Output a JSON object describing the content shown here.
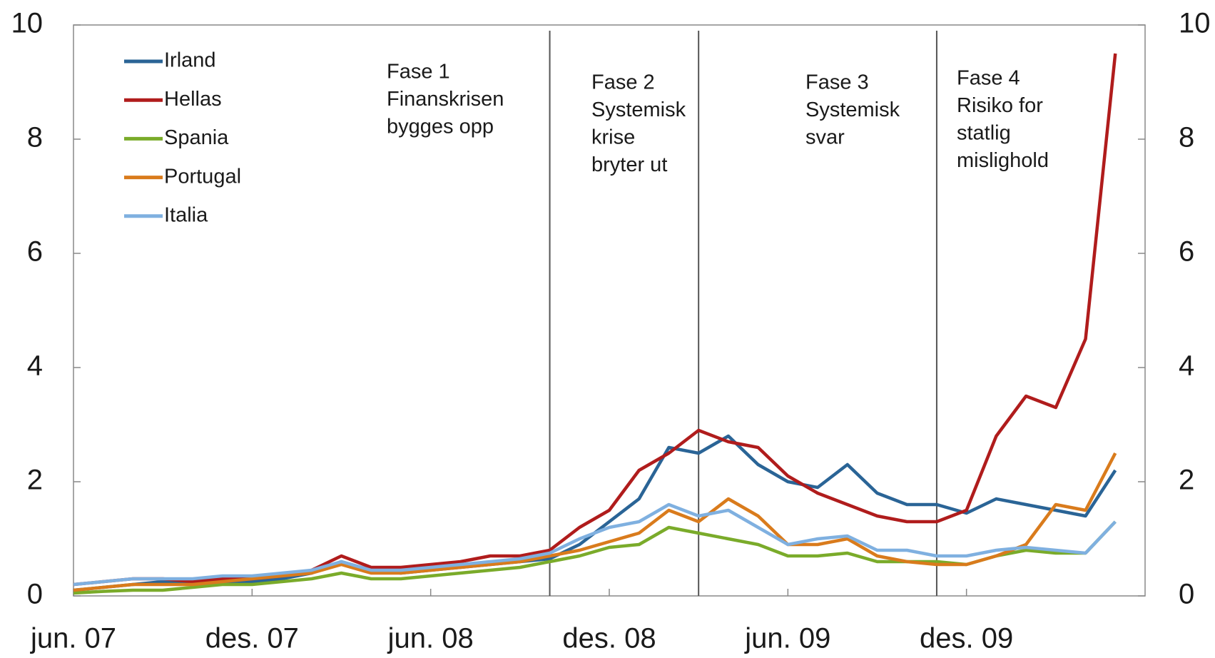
{
  "chart_data": {
    "type": "line",
    "x": [
      "2007-06",
      "2007-07",
      "2007-08",
      "2007-09",
      "2007-10",
      "2007-11",
      "2007-12",
      "2008-01",
      "2008-02",
      "2008-03",
      "2008-04",
      "2008-05",
      "2008-06",
      "2008-07",
      "2008-08",
      "2008-09",
      "2008-10",
      "2008-11",
      "2008-12",
      "2009-01",
      "2009-02",
      "2009-03",
      "2009-04",
      "2009-05",
      "2009-06",
      "2009-07",
      "2009-08",
      "2009-09",
      "2009-10",
      "2009-11",
      "2009-12",
      "2010-01",
      "2010-02",
      "2010-03",
      "2010-04",
      "2010-05"
    ],
    "series": [
      {
        "name": "Irland",
        "color": "#2a6496",
        "values": [
          0.1,
          0.15,
          0.2,
          0.25,
          0.2,
          0.25,
          0.25,
          0.3,
          0.4,
          0.6,
          0.45,
          0.4,
          0.45,
          0.5,
          0.55,
          0.6,
          0.65,
          0.9,
          1.3,
          1.7,
          2.6,
          2.5,
          2.8,
          2.3,
          2.0,
          1.9,
          2.3,
          1.8,
          1.6,
          1.6,
          1.45,
          1.7,
          1.6,
          1.5,
          1.4,
          2.2
        ]
      },
      {
        "name": "Hellas",
        "color": "#b01c1c",
        "values": [
          0.2,
          0.25,
          0.3,
          0.3,
          0.25,
          0.3,
          0.3,
          0.35,
          0.45,
          0.7,
          0.5,
          0.5,
          0.55,
          0.6,
          0.7,
          0.7,
          0.8,
          1.2,
          1.5,
          2.2,
          2.5,
          2.9,
          2.7,
          2.6,
          2.1,
          1.8,
          1.6,
          1.4,
          1.3,
          1.3,
          1.5,
          2.8,
          3.5,
          3.3,
          4.5,
          9.5
        ]
      },
      {
        "name": "Spania",
        "color": "#7aab2a",
        "values": [
          0.05,
          0.08,
          0.1,
          0.1,
          0.15,
          0.2,
          0.2,
          0.25,
          0.3,
          0.4,
          0.3,
          0.3,
          0.35,
          0.4,
          0.45,
          0.5,
          0.6,
          0.7,
          0.85,
          0.9,
          1.2,
          1.1,
          1.0,
          0.9,
          0.7,
          0.7,
          0.75,
          0.6,
          0.6,
          0.6,
          0.55,
          0.7,
          0.8,
          0.75,
          0.75,
          1.3
        ]
      },
      {
        "name": "Portugal",
        "color": "#d97b1c",
        "values": [
          0.1,
          0.15,
          0.2,
          0.2,
          0.2,
          0.25,
          0.3,
          0.35,
          0.4,
          0.55,
          0.4,
          0.4,
          0.45,
          0.5,
          0.55,
          0.6,
          0.7,
          0.8,
          0.95,
          1.1,
          1.5,
          1.3,
          1.7,
          1.4,
          0.9,
          0.9,
          1.0,
          0.7,
          0.6,
          0.55,
          0.55,
          0.7,
          0.9,
          1.6,
          1.5,
          2.5
        ]
      },
      {
        "name": "Italia",
        "color": "#7fb0e0",
        "values": [
          0.2,
          0.25,
          0.3,
          0.3,
          0.3,
          0.35,
          0.35,
          0.4,
          0.45,
          0.6,
          0.45,
          0.45,
          0.5,
          0.55,
          0.6,
          0.65,
          0.75,
          1.0,
          1.2,
          1.3,
          1.6,
          1.4,
          1.5,
          1.2,
          0.9,
          1.0,
          1.05,
          0.8,
          0.8,
          0.7,
          0.7,
          0.8,
          0.85,
          0.8,
          0.75,
          1.3
        ]
      }
    ],
    "xlim": [
      "2007-06",
      "2010-06"
    ],
    "xticks": [
      {
        "value": "2007-06",
        "label": "jun. 07"
      },
      {
        "value": "2007-12",
        "label": "des. 07"
      },
      {
        "value": "2008-06",
        "label": "jun. 08"
      },
      {
        "value": "2008-12",
        "label": "des. 08"
      },
      {
        "value": "2009-06",
        "label": "jun. 09"
      },
      {
        "value": "2009-12",
        "label": "des. 09"
      }
    ],
    "ylim": [
      0,
      10
    ],
    "yticks": [
      0,
      2,
      4,
      6,
      8,
      10
    ],
    "y2lim": [
      0,
      10
    ],
    "y2ticks": [
      0,
      2,
      4,
      6,
      8,
      10
    ],
    "vlines": [
      "2008-10",
      "2009-03",
      "2009-11"
    ],
    "annotations": [
      [
        "Fase 1",
        "Finanskrisen",
        "bygges opp"
      ],
      [
        "Fase 2",
        "Systemisk",
        "krise",
        "bryter ut"
      ],
      [
        "Fase 3",
        "Systemisk",
        "svar"
      ],
      [
        "Fase 4",
        "Risiko for",
        "statlig",
        "mislighold"
      ]
    ],
    "legend": "upper left"
  }
}
